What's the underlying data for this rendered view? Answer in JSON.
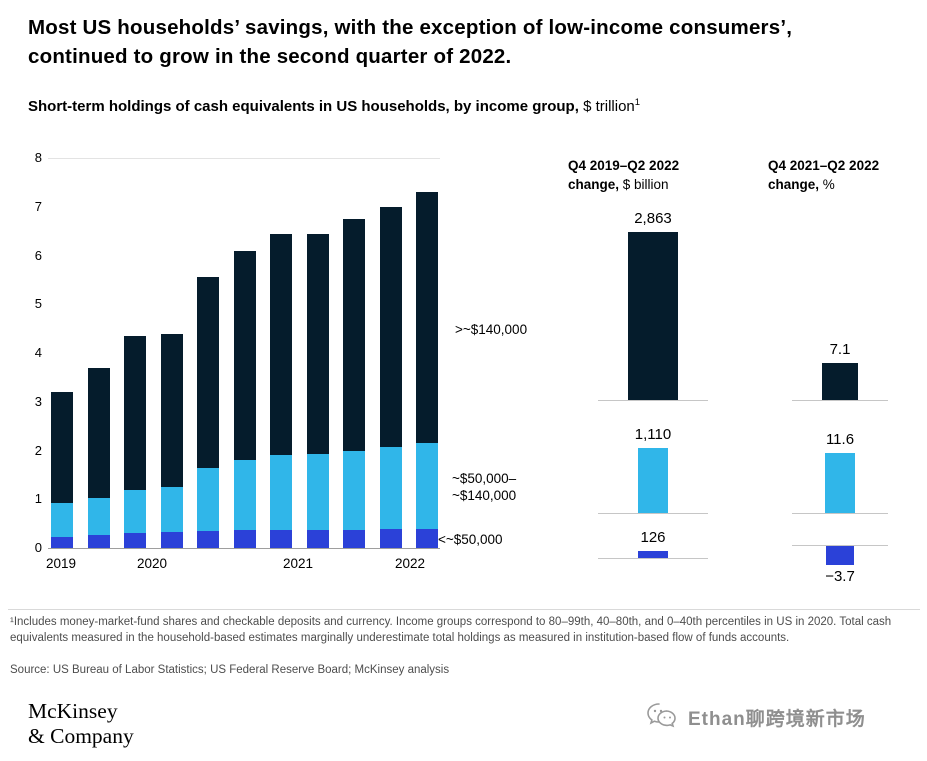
{
  "colors": {
    "dark": "#051C2C",
    "cyan": "#30B6E9",
    "blue": "#2B41D8"
  },
  "page": {
    "title_line1": "Most US households’ savings, with the exception of low-income consumers’,",
    "title_line2": "continued to grow in the second quarter of 2022.",
    "subtitle_bold": "Short-term holdings of cash equivalents in US households, by income group,",
    "subtitle_unit": " $ trillion",
    "subtitle_sup": "1"
  },
  "chart_data": [
    {
      "type": "bar",
      "stacked": true,
      "title": "Short-term holdings of cash equivalents in US households, by income group, $ trillion",
      "categories": [
        "Q4 2019",
        "Q1 2020",
        "Q2 2020",
        "Q3 2020",
        "Q4 2020",
        "Q1 2021",
        "Q2 2021",
        "Q3 2021",
        "Q4 2021",
        "Q1 2022",
        "Q2 2022"
      ],
      "x_tick_labels": [
        "2019",
        "2020",
        "2021",
        "2022"
      ],
      "ylim": [
        0,
        8
      ],
      "yticks": [
        0,
        1,
        2,
        3,
        4,
        5,
        6,
        7,
        8
      ],
      "grid": "top-line-only",
      "legend_position": "right-of-bars",
      "series": [
        {
          "name": "<~$50,000",
          "color": "blue",
          "values": [
            0.22,
            0.27,
            0.3,
            0.32,
            0.35,
            0.37,
            0.38,
            0.38,
            0.38,
            0.4,
            0.4
          ]
        },
        {
          "name": "~$50,000–~$140,000",
          "color": "cyan",
          "values": [
            0.71,
            0.76,
            0.9,
            0.93,
            1.3,
            1.43,
            1.52,
            1.54,
            1.62,
            1.68,
            1.75
          ]
        },
        {
          "name": ">~$140,000",
          "color": "dark",
          "values": [
            2.27,
            2.67,
            3.15,
            3.15,
            3.9,
            4.3,
            4.55,
            4.53,
            4.75,
            4.92,
            5.15
          ]
        }
      ],
      "group_labels": {
        "high": ">~$140,000",
        "mid_line1": "~$50,000–",
        "mid_line2": "~$140,000",
        "low": "<~$50,000"
      }
    },
    {
      "type": "bar",
      "title_line1": "Q4 2019–Q2 2022",
      "title_line2_bold": "change,",
      "title_line2_rest": " $ billion",
      "categories": [
        ">~$140,000",
        "~$50,000–~$140,000",
        "<~$50,000"
      ],
      "values": [
        2863,
        1110,
        126
      ],
      "value_labels": [
        "2,863",
        "1,110",
        "126"
      ],
      "bar_colors": [
        "dark",
        "cyan",
        "blue"
      ]
    },
    {
      "type": "bar",
      "title_line1": "Q4 2021–Q2 2022",
      "title_line2_bold": "change,",
      "title_line2_rest": " %",
      "categories": [
        ">~$140,000",
        "~$50,000–~$140,000",
        "<~$50,000"
      ],
      "values": [
        7.1,
        11.6,
        -3.7
      ],
      "value_labels": [
        "7.1",
        "11.6",
        "−3.7"
      ],
      "bar_colors": [
        "dark",
        "cyan",
        "blue"
      ]
    }
  ],
  "footnote": {
    "text": "¹Includes money-market-fund shares and checkable deposits and currency. Income groups correspond to 80–99th, 40–80th, and 0–40th percentiles in US in 2020. Total cash equivalents measured in the household-based estimates marginally underestimate total holdings as measured in institution-based flow of funds accounts.",
    "source": "Source: US Bureau of Labor Statistics; US Federal Reserve Board; McKinsey analysis"
  },
  "footer": {
    "logo_line1": "McKinsey",
    "logo_line2": "& Company",
    "watermark": "Ethan聊跨境新市场"
  }
}
